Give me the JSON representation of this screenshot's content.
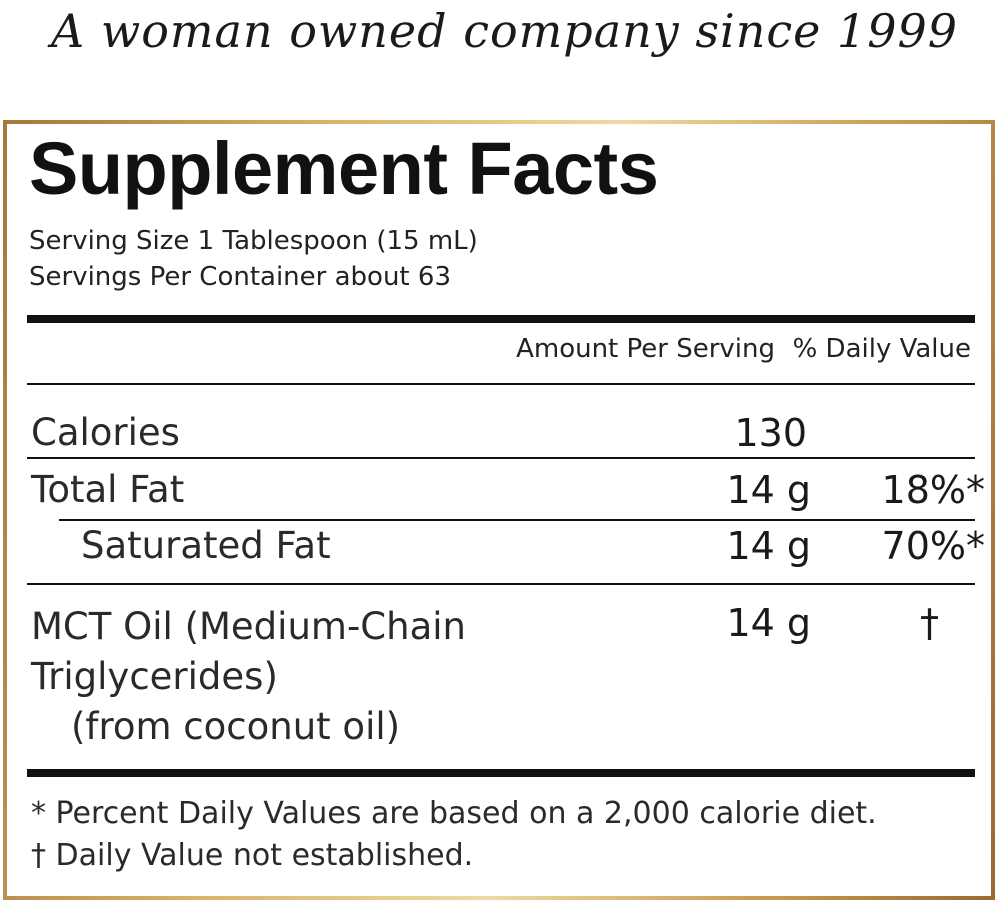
{
  "tagline": "A woman owned company since 1999",
  "panel": {
    "title": "Supplement Facts",
    "serving_size": "Serving Size 1 Tablespoon (15 mL)",
    "servings_per_container": "Servings Per Container about 63",
    "col_amount": "Amount Per Serving",
    "col_dv": "% Daily Value",
    "rows": [
      {
        "name": "Calories",
        "amount": "130",
        "dv": ""
      },
      {
        "name": "Total Fat",
        "amount": "14 g",
        "dv": "18%*"
      },
      {
        "name": "Saturated Fat",
        "amount": "14 g",
        "dv": "70%*"
      },
      {
        "name_line1": "MCT Oil (Medium-Chain",
        "name_line2": "Triglycerides)",
        "name_line3": "(from coconut oil)",
        "amount": "14 g",
        "dv": "†"
      }
    ],
    "footnote1": "* Percent Daily Values are based on a 2,000 calorie diet.",
    "footnote2": "† Daily Value not established."
  }
}
